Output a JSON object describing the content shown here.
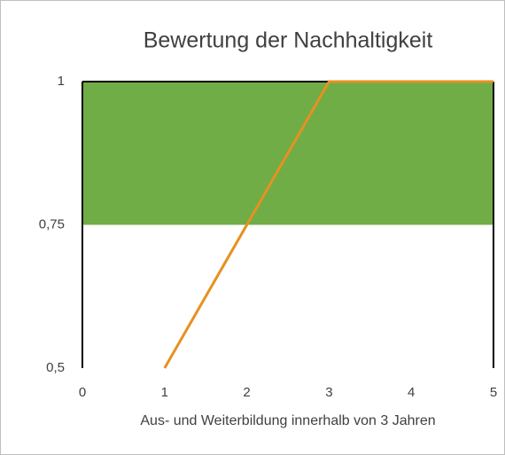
{
  "chart_data": {
    "type": "line",
    "title": "Bewertung der Nachhaltigkeit",
    "x_label": "Aus- und Weiterbildung innerhalb von 3 Jahren",
    "series": [
      {
        "color": "#e69120",
        "x": [
          1,
          3,
          5
        ],
        "values": [
          0.5,
          1,
          1
        ]
      }
    ],
    "bands": [
      {
        "from": 0.75,
        "to": 1,
        "color": "#70ad47"
      }
    ],
    "xlim": [
      0,
      5
    ],
    "ylim": [
      0.5,
      1
    ],
    "xticks": [
      0,
      1,
      2,
      3,
      4,
      5
    ],
    "yticks": [
      {
        "value": 0.5,
        "label": "0,5"
      },
      {
        "value": 0.75,
        "label": "0,75"
      },
      1
    ]
  }
}
